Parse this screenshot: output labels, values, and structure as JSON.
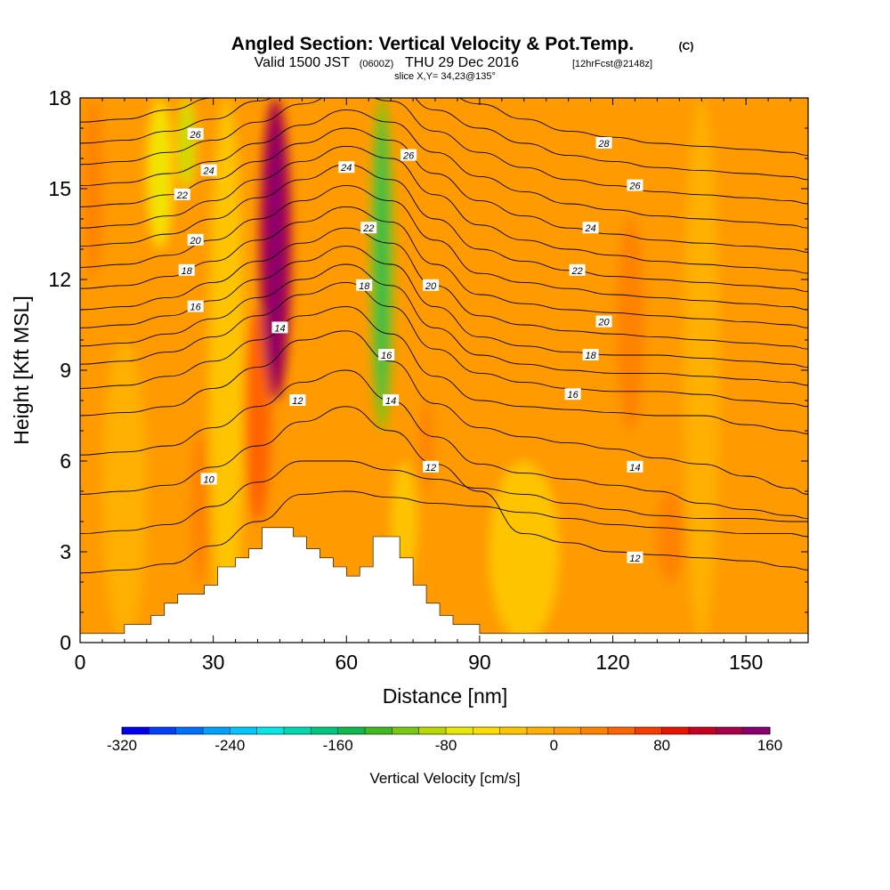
{
  "title": {
    "main": "Angled Section: Vertical Velocity & Pot.Temp.",
    "copyright": "(C)",
    "valid_prefix": "Valid 1500 JST",
    "valid_utc": "(0600Z)",
    "valid_date": "THU 29 Dec 2016",
    "forecast": "[12hrFcst@2148z]",
    "slice": "slice X,Y= 34,23@135°"
  },
  "chart_data": {
    "type": "heatmap",
    "xlabel": "Distance [nm]",
    "ylabel": "Height [Kft MSL]",
    "xlim": [
      0,
      164
    ],
    "ylim": [
      0,
      18
    ],
    "x_ticks": [
      0,
      30,
      60,
      90,
      120,
      150
    ],
    "y_ticks": [
      0,
      3,
      6,
      9,
      12,
      15,
      18
    ],
    "colorbar": {
      "label": "Vertical Velocity [cm/s]",
      "range": [
        -320,
        160
      ],
      "step": 20,
      "tick_values": [
        -320,
        -240,
        -160,
        -80,
        0,
        80,
        160
      ],
      "colors": [
        "#0000f0",
        "#0040f8",
        "#0070ff",
        "#00a0ff",
        "#00c8ff",
        "#00e8e8",
        "#00d8b0",
        "#00c880",
        "#10b850",
        "#40b820",
        "#78c810",
        "#b8d800",
        "#e8e800",
        "#ffdc00",
        "#ffc400",
        "#ffb000",
        "#ff9a00",
        "#ff8200",
        "#ff6400",
        "#f83c00",
        "#e81400",
        "#c80020",
        "#a80048",
        "#880070",
        "#6000a0"
      ]
    },
    "velocity_features": [
      {
        "x": 3,
        "z_bottom": 12,
        "z_top": 18,
        "value": 35,
        "width_nm": 2
      },
      {
        "x": 27,
        "z_bottom": 2,
        "z_top": 7,
        "value": 30,
        "width_nm": 2
      },
      {
        "x": 40,
        "z_bottom": 4,
        "z_top": 11,
        "value": 45,
        "width_nm": 3
      },
      {
        "x": 44,
        "z_bottom": 8,
        "z_top": 18,
        "value": 120,
        "width_nm": 3.5
      },
      {
        "x": 18,
        "z_bottom": 13,
        "z_top": 18,
        "value": -60,
        "width_nm": 3
      },
      {
        "x": 24,
        "z_bottom": 15,
        "z_top": 18,
        "value": -70,
        "width_nm": 2
      },
      {
        "x": 68,
        "z_bottom": 7,
        "z_top": 18,
        "value": -110,
        "width_nm": 2.5
      },
      {
        "x": 73,
        "z_bottom": 2,
        "z_top": 6,
        "value": -40,
        "width_nm": 3
      },
      {
        "x": 78,
        "z_bottom": 5,
        "z_top": 8,
        "value": 35,
        "width_nm": 1.5
      },
      {
        "x": 124,
        "z_bottom": 7,
        "z_top": 14,
        "value": 25,
        "width_nm": 3
      },
      {
        "x": 133,
        "z_bottom": 2,
        "z_top": 5,
        "value": 30,
        "width_nm": 3
      },
      {
        "x": 150,
        "z_bottom": 0,
        "z_top": 18,
        "value": 15,
        "width_nm": 4
      },
      {
        "x": 10,
        "z_bottom": 0,
        "z_top": 10,
        "value": -20,
        "width_nm": 5
      },
      {
        "x": 33,
        "z_bottom": 0,
        "z_top": 18,
        "value": -25,
        "width_nm": 4
      },
      {
        "x": 100,
        "z_bottom": 0,
        "z_top": 6,
        "value": -25,
        "width_nm": 8
      },
      {
        "x": 140,
        "z_bottom": 0,
        "z_top": 18,
        "value": -20,
        "width_nm": 4
      }
    ],
    "terrain": [
      [
        0,
        0.3
      ],
      [
        10,
        0.3
      ],
      [
        10,
        0.6
      ],
      [
        16,
        0.6
      ],
      [
        16,
        0.9
      ],
      [
        19,
        0.9
      ],
      [
        19,
        1.3
      ],
      [
        22,
        1.3
      ],
      [
        22,
        1.6
      ],
      [
        28,
        1.6
      ],
      [
        28,
        1.9
      ],
      [
        31,
        1.9
      ],
      [
        31,
        2.5
      ],
      [
        35,
        2.5
      ],
      [
        35,
        2.8
      ],
      [
        38,
        2.8
      ],
      [
        38,
        3.1
      ],
      [
        41,
        3.1
      ],
      [
        41,
        3.8
      ],
      [
        48,
        3.8
      ],
      [
        48,
        3.5
      ],
      [
        51,
        3.5
      ],
      [
        51,
        3.1
      ],
      [
        54,
        3.1
      ],
      [
        54,
        2.8
      ],
      [
        57,
        2.8
      ],
      [
        57,
        2.5
      ],
      [
        60,
        2.5
      ],
      [
        60,
        2.2
      ],
      [
        63,
        2.2
      ],
      [
        63,
        2.5
      ],
      [
        66,
        2.5
      ],
      [
        66,
        3.5
      ],
      [
        72,
        3.5
      ],
      [
        72,
        2.8
      ],
      [
        75,
        2.8
      ],
      [
        75,
        1.9
      ],
      [
        78,
        1.9
      ],
      [
        78,
        1.3
      ],
      [
        81,
        1.3
      ],
      [
        81,
        0.9
      ],
      [
        84,
        0.9
      ],
      [
        84,
        0.6
      ],
      [
        90,
        0.6
      ],
      [
        90,
        0.3
      ],
      [
        164,
        0.3
      ]
    ],
    "isotherms": [
      {
        "value": 10,
        "z": [
          2.3,
          2.4,
          2.6,
          3.2,
          4.0,
          4.9,
          5.0,
          4.8,
          4.6,
          4.5,
          4.3,
          4.1,
          3.9,
          3.8,
          3.7,
          3.6,
          3.6,
          3.5
        ]
      },
      {
        "value": 11,
        "z": [
          3.6,
          3.7,
          3.9,
          4.5,
          5.3,
          6.0,
          6.0,
          5.7,
          5.4,
          5.1,
          4.9,
          4.6,
          4.4,
          4.2,
          4.1,
          4.1,
          4.0,
          4.0
        ]
      },
      {
        "value": 12,
        "z": [
          4.9,
          5.0,
          5.2,
          5.8,
          6.5,
          7.3,
          7.8,
          7.0,
          5.9,
          5.0,
          3.6,
          3.3,
          3.0,
          2.9,
          2.8,
          2.7,
          2.5,
          2.4
        ]
      },
      {
        "value": 13,
        "z": [
          6.2,
          6.3,
          6.5,
          7.1,
          7.8,
          8.6,
          9.0,
          8.0,
          6.8,
          5.9,
          5.6,
          5.4,
          5.2,
          5.0,
          4.6,
          4.4,
          4.2,
          4.1
        ]
      },
      {
        "value": 14,
        "z": [
          7.5,
          7.6,
          7.8,
          8.4,
          9.1,
          10.0,
          10.3,
          9.3,
          7.9,
          7.1,
          6.8,
          6.6,
          6.4,
          6.1,
          5.9,
          5.5,
          5.1,
          4.9
        ]
      },
      {
        "value": 15,
        "z": [
          8.4,
          8.5,
          8.8,
          9.3,
          10.0,
          10.8,
          11.1,
          10.2,
          8.8,
          8.0,
          7.8,
          7.7,
          7.6,
          7.5,
          7.5,
          7.2,
          7.0,
          6.9
        ]
      },
      {
        "value": 16,
        "z": [
          9.2,
          9.3,
          9.6,
          10.1,
          10.8,
          11.5,
          11.9,
          11.1,
          9.7,
          8.9,
          8.6,
          8.4,
          8.3,
          8.3,
          8.2,
          8.0,
          7.9,
          7.8
        ]
      },
      {
        "value": 17,
        "z": [
          9.8,
          9.9,
          10.2,
          10.7,
          11.4,
          12.0,
          12.5,
          11.8,
          10.4,
          9.5,
          9.2,
          9.0,
          8.9,
          8.9,
          8.8,
          8.7,
          8.6,
          8.5
        ]
      },
      {
        "value": 18,
        "z": [
          10.4,
          10.5,
          10.8,
          11.3,
          12.0,
          12.6,
          13.1,
          12.5,
          11.1,
          10.1,
          9.8,
          9.6,
          9.5,
          9.5,
          9.4,
          9.3,
          9.2,
          9.1
        ]
      },
      {
        "value": 19,
        "z": [
          11.0,
          11.1,
          11.4,
          11.9,
          12.6,
          13.2,
          13.7,
          13.2,
          11.8,
          10.8,
          10.5,
          10.3,
          10.2,
          10.1,
          10.0,
          9.9,
          9.8,
          9.7
        ]
      },
      {
        "value": 20,
        "z": [
          11.7,
          11.8,
          12.1,
          12.6,
          13.3,
          13.9,
          14.4,
          13.9,
          12.5,
          11.5,
          11.2,
          11.0,
          10.9,
          10.8,
          10.7,
          10.6,
          10.5,
          10.4
        ]
      },
      {
        "value": 21,
        "z": [
          12.4,
          12.5,
          12.8,
          13.3,
          14.0,
          14.6,
          15.1,
          14.6,
          13.3,
          12.2,
          11.9,
          11.7,
          11.5,
          11.4,
          11.3,
          11.2,
          11.1,
          11.0
        ]
      },
      {
        "value": 22,
        "z": [
          13.1,
          13.2,
          13.5,
          14.0,
          14.7,
          15.3,
          15.8,
          15.3,
          14.0,
          13.0,
          12.6,
          12.3,
          12.1,
          12.0,
          11.9,
          11.8,
          11.7,
          11.6
        ]
      },
      {
        "value": 23,
        "z": [
          13.7,
          13.8,
          14.1,
          14.6,
          15.3,
          15.9,
          16.4,
          16.0,
          14.8,
          13.8,
          13.3,
          13.0,
          12.8,
          12.6,
          12.5,
          12.4,
          12.3,
          12.2
        ]
      },
      {
        "value": 24,
        "z": [
          14.4,
          14.5,
          14.8,
          15.3,
          15.9,
          16.5,
          17.0,
          16.6,
          15.5,
          14.6,
          14.1,
          13.7,
          13.5,
          13.3,
          13.2,
          13.1,
          13.0,
          12.9
        ]
      },
      {
        "value": 25,
        "z": [
          15.1,
          15.2,
          15.5,
          15.9,
          16.5,
          17.1,
          17.6,
          17.2,
          16.2,
          15.4,
          14.9,
          14.5,
          14.3,
          14.1,
          14.0,
          13.9,
          13.8,
          13.7
        ]
      },
      {
        "value": 26,
        "z": [
          15.8,
          15.9,
          16.2,
          16.6,
          17.2,
          17.8,
          18.3,
          17.9,
          16.9,
          16.2,
          15.7,
          15.3,
          15.1,
          14.9,
          14.8,
          14.7,
          14.6,
          14.5
        ]
      },
      {
        "value": 27,
        "z": [
          16.5,
          16.6,
          16.9,
          17.3,
          17.9,
          18.5,
          19.0,
          18.6,
          17.6,
          17.0,
          16.5,
          16.1,
          15.9,
          15.7,
          15.6,
          15.5,
          15.4,
          15.3
        ]
      },
      {
        "value": 28,
        "z": [
          17.2,
          17.3,
          17.6,
          18.0,
          18.6,
          19.2,
          19.7,
          19.3,
          18.3,
          17.8,
          17.3,
          16.9,
          16.7,
          16.5,
          16.4,
          16.3,
          16.2,
          16.1
        ]
      }
    ],
    "isotherm_x": [
      0,
      10,
      20,
      30,
      40,
      50,
      60,
      70,
      80,
      90,
      100,
      110,
      120,
      130,
      140,
      150,
      160,
      164
    ],
    "contour_labels": [
      {
        "text": "26",
        "x": 26,
        "z": 16.8
      },
      {
        "text": "24",
        "x": 29,
        "z": 15.6
      },
      {
        "text": "22",
        "x": 23,
        "z": 14.8
      },
      {
        "text": "20",
        "x": 26,
        "z": 13.3
      },
      {
        "text": "18",
        "x": 24,
        "z": 12.3
      },
      {
        "text": "16",
        "x": 26,
        "z": 11.1
      },
      {
        "text": "14",
        "x": 45,
        "z": 10.4
      },
      {
        "text": "12",
        "x": 49,
        "z": 8.0
      },
      {
        "text": "10",
        "x": 29,
        "z": 5.4
      },
      {
        "text": "24",
        "x": 60,
        "z": 15.7
      },
      {
        "text": "22",
        "x": 65,
        "z": 13.7
      },
      {
        "text": "18",
        "x": 64,
        "z": 11.8
      },
      {
        "text": "16",
        "x": 69,
        "z": 9.5
      },
      {
        "text": "14",
        "x": 70,
        "z": 8.0
      },
      {
        "text": "26",
        "x": 74,
        "z": 16.1
      },
      {
        "text": "20",
        "x": 79,
        "z": 11.8
      },
      {
        "text": "12",
        "x": 79,
        "z": 5.8
      },
      {
        "text": "28",
        "x": 118,
        "z": 16.5
      },
      {
        "text": "26",
        "x": 125,
        "z": 15.1
      },
      {
        "text": "24",
        "x": 115,
        "z": 13.7
      },
      {
        "text": "22",
        "x": 112,
        "z": 12.3
      },
      {
        "text": "20",
        "x": 118,
        "z": 10.6
      },
      {
        "text": "18",
        "x": 115,
        "z": 9.5
      },
      {
        "text": "16",
        "x": 111,
        "z": 8.2
      },
      {
        "text": "14",
        "x": 125,
        "z": 5.8
      },
      {
        "text": "12",
        "x": 125,
        "z": 2.8
      }
    ]
  }
}
